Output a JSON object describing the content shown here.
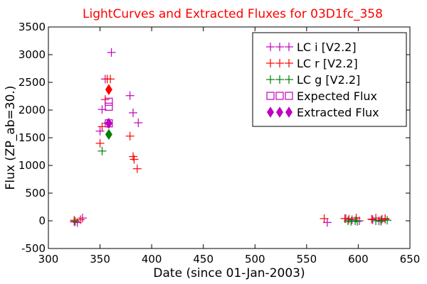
{
  "chart_data": {
    "type": "scatter",
    "title": "LightCurves and Extracted Fluxes for 03D1fc_358",
    "xlabel": "Date (since 01-Jan-2003)",
    "ylabel": "Flux (ZP_ab=30.)",
    "xlim": [
      300,
      650
    ],
    "ylim": [
      -500,
      3500
    ],
    "xticks": [
      300,
      350,
      400,
      450,
      500,
      550,
      600,
      650
    ],
    "yticks": [
      -500,
      0,
      500,
      1000,
      1500,
      2000,
      2500,
      3000,
      3500
    ],
    "grid": false,
    "legend_position": "top-right",
    "series": [
      {
        "name": "LC i [V2.2]",
        "marker": "plus",
        "color": "#bf00bf",
        "points": [
          [
            325,
            -20
          ],
          [
            328,
            -30
          ],
          [
            333,
            50
          ],
          [
            350,
            1620
          ],
          [
            352,
            2010
          ],
          [
            355,
            2560
          ],
          [
            358,
            1770
          ],
          [
            361,
            3040
          ],
          [
            379,
            2260
          ],
          [
            382,
            1950
          ],
          [
            387,
            1770
          ],
          [
            570,
            -30
          ],
          [
            588,
            40
          ],
          [
            594,
            20
          ],
          [
            601,
            0
          ],
          [
            614,
            20
          ],
          [
            620,
            0
          ],
          [
            622,
            10
          ],
          [
            626,
            30
          ]
        ]
      },
      {
        "name": "LC r [V2.2]",
        "marker": "plus",
        "color": "#ff0000",
        "points": [
          [
            325,
            10
          ],
          [
            331,
            20
          ],
          [
            350,
            1400
          ],
          [
            352,
            1700
          ],
          [
            355,
            2190
          ],
          [
            357,
            2560
          ],
          [
            360,
            2560
          ],
          [
            379,
            1530
          ],
          [
            382,
            1160
          ],
          [
            383,
            1110
          ],
          [
            386,
            940
          ],
          [
            567,
            40
          ],
          [
            587,
            40
          ],
          [
            591,
            30
          ],
          [
            598,
            50
          ],
          [
            613,
            30
          ],
          [
            617,
            50
          ],
          [
            623,
            30
          ],
          [
            626,
            40
          ]
        ]
      },
      {
        "name": "LC g [V2.2]",
        "marker": "plus",
        "color": "#008000",
        "points": [
          [
            326,
            -10
          ],
          [
            352,
            1260
          ],
          [
            357,
            1760
          ],
          [
            590,
            0
          ],
          [
            593,
            -10
          ],
          [
            597,
            0
          ],
          [
            599,
            -10
          ],
          [
            617,
            0
          ],
          [
            622,
            -10
          ],
          [
            628,
            10
          ]
        ]
      },
      {
        "name": "Expected Flux",
        "marker": "open-square",
        "color": "#bf00bf",
        "points": [
          [
            358.5,
            2150
          ],
          [
            358.5,
            2060
          ],
          [
            358.5,
            1760
          ]
        ]
      },
      {
        "name": "Extracted Flux",
        "marker": "filled-diamond",
        "color": "#bf00bf",
        "points": [
          [
            358.5,
            1760
          ]
        ]
      },
      {
        "name": "",
        "marker": "filled-diamond",
        "color": "#ff0000",
        "points": [
          [
            358.5,
            2370
          ]
        ]
      },
      {
        "name": "",
        "marker": "filled-diamond",
        "color": "#008000",
        "points": [
          [
            358.5,
            1560
          ]
        ]
      }
    ],
    "legend": [
      {
        "label": "LC i [V2.2]",
        "marker": "plus",
        "color": "#bf00bf"
      },
      {
        "label": "LC r [V2.2]",
        "marker": "plus",
        "color": "#ff0000"
      },
      {
        "label": "LC g [V2.2]",
        "marker": "plus",
        "color": "#008000"
      },
      {
        "label": "Expected Flux",
        "marker": "open-square",
        "color": "#bf00bf"
      },
      {
        "label": "Extracted Flux",
        "marker": "filled-diamond",
        "color": "#bf00bf"
      }
    ]
  }
}
